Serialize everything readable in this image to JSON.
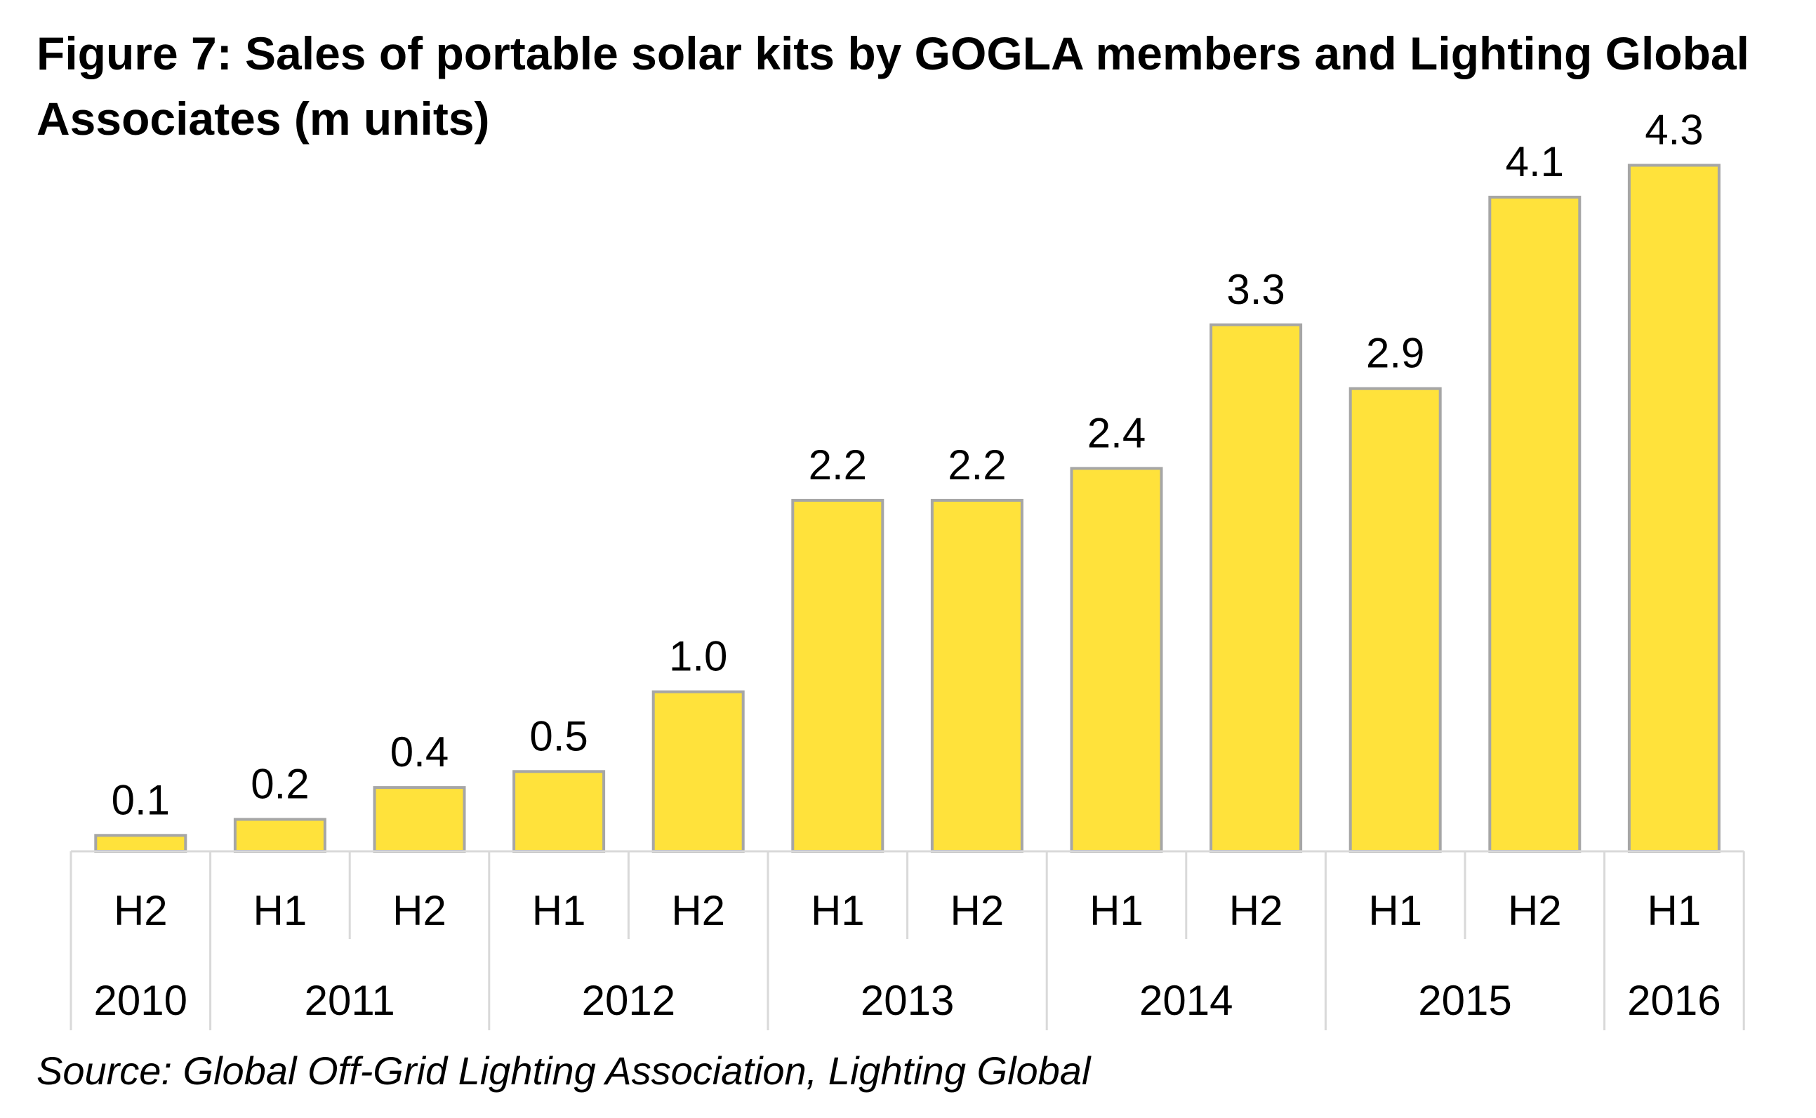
{
  "chart_data": {
    "type": "bar",
    "title": "Figure 7: Sales of portable solar kits by GOGLA members and Lighting Global Associates (m units)",
    "categories": [
      "H2",
      "H1",
      "H2",
      "H1",
      "H2",
      "H1",
      "H2",
      "H1",
      "H2",
      "H1",
      "H2",
      "H1"
    ],
    "values": [
      0.1,
      0.2,
      0.4,
      0.5,
      1.0,
      2.2,
      2.2,
      2.4,
      3.3,
      2.9,
      4.1,
      4.3
    ],
    "data_labels": [
      "0.1",
      "0.2",
      "0.4",
      "0.5",
      "1.0",
      "2.2",
      "2.2",
      "2.4",
      "3.3",
      "2.9",
      "4.1",
      "4.3"
    ],
    "year_groups": [
      {
        "label": "2010",
        "span": 1
      },
      {
        "label": "2011",
        "span": 2
      },
      {
        "label": "2012",
        "span": 2
      },
      {
        "label": "2013",
        "span": 2
      },
      {
        "label": "2014",
        "span": 2
      },
      {
        "label": "2015",
        "span": 2
      },
      {
        "label": "2016",
        "span": 1
      }
    ],
    "ylim": [
      0,
      4.5
    ],
    "grid": false,
    "colors": {
      "bar_fill": "#FFE23B",
      "bar_stroke": "#A6A6A6",
      "axis": "#D9D9D9"
    }
  },
  "source": "Source: Global Off-Grid Lighting Association, Lighting Global"
}
